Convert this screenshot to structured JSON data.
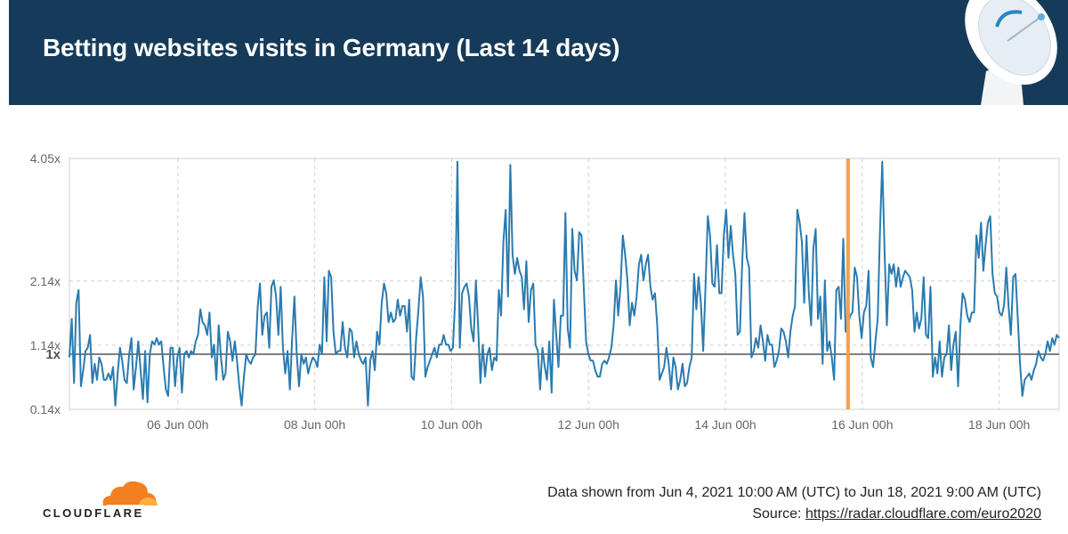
{
  "header": {
    "title": "Betting websites visits in Germany (Last 14 days)"
  },
  "colors": {
    "header_bg": "#163b5a",
    "series": "#2a7bb0",
    "marker": "#f5a04a",
    "grid": "#cfcfcf",
    "baseline": "#555555"
  },
  "chart_data": {
    "type": "line",
    "x_unit": "hours since Jun 4, 2021 10:00 UTC",
    "xlim": [
      0,
      347
    ],
    "ylim": [
      0.14,
      4.05
    ],
    "y_ticks": [
      {
        "value": 0.14,
        "label": "0.14x"
      },
      {
        "value": 1.14,
        "label": "1.14x"
      },
      {
        "value": 2.14,
        "label": "2.14x"
      },
      {
        "value": 4.05,
        "label": "4.05x"
      }
    ],
    "baseline": {
      "value": 1.0,
      "label": "1x"
    },
    "x_ticks": [
      {
        "value": 38,
        "label": "06 Jun 00h"
      },
      {
        "value": 86,
        "label": "08 Jun 00h"
      },
      {
        "value": 134,
        "label": "10 Jun 00h"
      },
      {
        "value": 182,
        "label": "12 Jun 00h"
      },
      {
        "value": 230,
        "label": "14 Jun 00h"
      },
      {
        "value": 278,
        "label": "16 Jun 00h"
      },
      {
        "value": 326,
        "label": "18 Jun 00h"
      }
    ],
    "marker_x": 273,
    "grid": true,
    "legend": "none",
    "series": [
      {
        "values": [
          0.95,
          1.55,
          0.55,
          1.8,
          2.0,
          0.5,
          0.75,
          1.05,
          1.1,
          1.3,
          0.55,
          0.85,
          0.6,
          0.95,
          0.85,
          0.6,
          0.6,
          0.7,
          0.6,
          0.8,
          0.2,
          0.7,
          1.1,
          0.9,
          0.6,
          0.55,
          1.0,
          1.25,
          0.45,
          0.8,
          1.2,
          0.75,
          0.3,
          1.05,
          0.25,
          1.0,
          1.2,
          1.15,
          1.25,
          1.15,
          1.2,
          0.8,
          0.45,
          0.35,
          1.1,
          1.1,
          0.5,
          0.95,
          1.1,
          0.4,
          1.0,
          1.05,
          0.95,
          1.05,
          1.0,
          1.2,
          1.3,
          1.7,
          1.5,
          1.45,
          1.3,
          1.65,
          0.95,
          1.15,
          0.6,
          1.45,
          0.95,
          0.6,
          0.7,
          1.35,
          1.2,
          0.9,
          1.2,
          0.9,
          0.5,
          0.2,
          0.65,
          1.0,
          0.9,
          0.85,
          0.95,
          1.0,
          1.75,
          2.1,
          1.3,
          1.6,
          1.65,
          1.1,
          2.05,
          2.15,
          1.9,
          1.3,
          2.05,
          1.1,
          0.7,
          1.05,
          0.45,
          1.25,
          1.9,
          1.0,
          0.5,
          1.0,
          0.85,
          0.95,
          0.7,
          0.85,
          0.95,
          0.9,
          0.8,
          1.15,
          1.0,
          2.2,
          1.2,
          2.3,
          2.2,
          1.35,
          1.0,
          1.05,
          1.05,
          1.5,
          1.1,
          0.95,
          1.4,
          1.35,
          0.95,
          1.2,
          1.0,
          0.9,
          0.85,
          0.95,
          0.2,
          0.9,
          1.05,
          0.75,
          1.35,
          1.15,
          1.8,
          2.1,
          1.95,
          1.5,
          1.65,
          1.5,
          1.55,
          1.85,
          1.6,
          1.75,
          1.75,
          1.35,
          1.85,
          0.65,
          0.6,
          1.25,
          1.7,
          2.2,
          1.9,
          0.65,
          0.8,
          0.9,
          1.0,
          1.1,
          0.95,
          1.15,
          1.15,
          1.3,
          1.15,
          1.15,
          1.05,
          1.1,
          1.85,
          4.0,
          1.1,
          1.95,
          2.05,
          2.1,
          1.9,
          1.4,
          1.2,
          2.15,
          1.45,
          0.55,
          1.15,
          0.65,
          1.0,
          1.1,
          0.75,
          0.95,
          0.9,
          2.0,
          1.6,
          2.75,
          3.25,
          1.9,
          3.95,
          2.55,
          2.25,
          2.5,
          2.3,
          2.2,
          1.7,
          2.45,
          1.5,
          2.0,
          2.1,
          1.15,
          1.05,
          0.45,
          1.1,
          0.8,
          0.6,
          1.2,
          0.4,
          1.85,
          1.3,
          0.8,
          1.6,
          1.6,
          3.2,
          1.4,
          1.1,
          2.95,
          2.3,
          2.15,
          2.9,
          2.85,
          2.05,
          1.2,
          1.0,
          0.9,
          0.9,
          0.75,
          0.65,
          0.65,
          0.85,
          0.9,
          0.85,
          0.95,
          1.1,
          1.45,
          2.15,
          1.6,
          2.05,
          2.85,
          2.55,
          2.15,
          1.45,
          1.8,
          1.6,
          1.9,
          2.4,
          2.55,
          2.15,
          2.4,
          2.55,
          2.05,
          1.85,
          1.95,
          1.45,
          0.6,
          0.7,
          0.8,
          1.1,
          0.85,
          0.45,
          0.95,
          0.8,
          0.45,
          0.6,
          0.85,
          0.5,
          0.55,
          0.8,
          0.95,
          2.25,
          1.7,
          2.2,
          1.8,
          1.05,
          2.05,
          3.15,
          2.85,
          2.1,
          2.05,
          2.7,
          1.95,
          1.95,
          2.85,
          3.25,
          2.5,
          3.0,
          2.55,
          2.25,
          1.3,
          1.35,
          2.45,
          3.2,
          2.5,
          2.35,
          0.95,
          1.05,
          1.25,
          1.1,
          1.45,
          1.2,
          0.9,
          1.3,
          1.15,
          1.15,
          0.8,
          0.9,
          1.05,
          1.4,
          1.35,
          1.2,
          0.95,
          1.35,
          1.6,
          1.75,
          3.25,
          3.05,
          2.75,
          1.8,
          2.85,
          1.95,
          1.45,
          2.65,
          2.95,
          1.55,
          1.9,
          0.85,
          2.15,
          1.05,
          1.2,
          0.95,
          0.6,
          2.0,
          2.05,
          1.55,
          2.8,
          1.35,
          1.45,
          1.6,
          1.65,
          2.35,
          2.2,
          1.6,
          1.25,
          1.65,
          1.75,
          2.3,
          0.95,
          0.8,
          1.2,
          1.55,
          2.95,
          4.0,
          2.6,
          1.45,
          2.4,
          2.25,
          2.4,
          2.05,
          2.35,
          2.05,
          2.2,
          2.3,
          2.25,
          2.2,
          2.0,
          1.35,
          1.65,
          1.4,
          1.55,
          2.2,
          1.3,
          1.25,
          2.05,
          0.65,
          0.95,
          0.7,
          1.2,
          0.65,
          0.95,
          1.0,
          1.45,
          0.75,
          1.15,
          1.35,
          0.5,
          1.45,
          1.95,
          1.85,
          1.6,
          1.5,
          1.65,
          1.65,
          2.85,
          2.5,
          3.05,
          2.3,
          2.7,
          3.05,
          3.15,
          2.25,
          1.95,
          1.9,
          1.65,
          1.6,
          1.75,
          2.35,
          1.75,
          1.3,
          2.2,
          2.25,
          1.55,
          0.85,
          0.35,
          0.6,
          0.65,
          0.7,
          0.6,
          0.75,
          0.85,
          1.05,
          0.95,
          0.9,
          1.0,
          1.2,
          1.05,
          1.25,
          1.15,
          1.3,
          1.25
        ]
      }
    ]
  },
  "footer": {
    "range_text": "Data shown from Jun 4, 2021 10:00 AM (UTC) to Jun 18, 2021 9:00 AM (UTC)",
    "source_label": "Source: ",
    "source_link": "https://radar.cloudflare.com/euro2020"
  },
  "logo": {
    "name": "cloudflare-logo",
    "wordmark": "CLOUDFLARE",
    "colors": [
      "#f38020",
      "#faae40"
    ]
  }
}
